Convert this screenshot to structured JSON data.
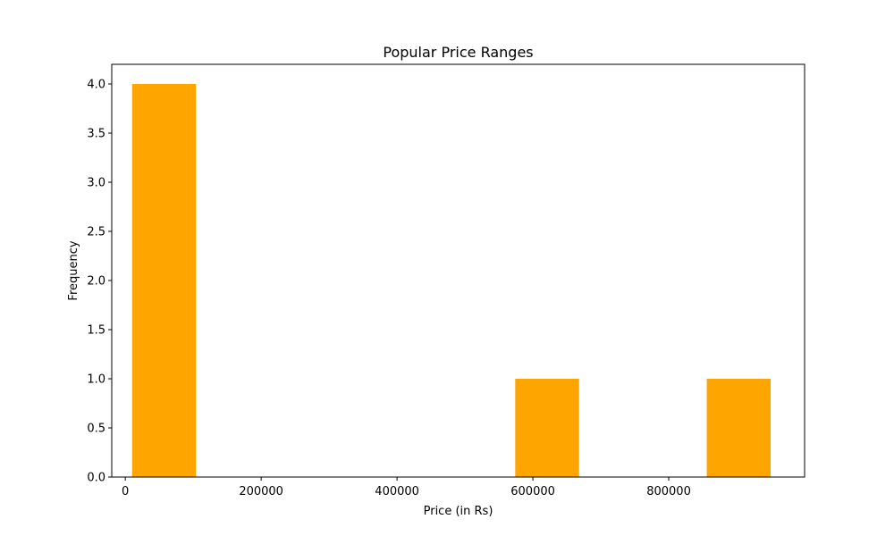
{
  "chart_data": {
    "type": "bar",
    "title": "Popular Price Ranges",
    "xlabel": "Price (in Rs)",
    "ylabel": "Frequency",
    "xlim": [
      -20000,
      1000000
    ],
    "ylim": [
      0,
      4.2
    ],
    "xticks": [
      0,
      200000,
      400000,
      600000,
      800000
    ],
    "xtick_labels": [
      "0",
      "200000",
      "400000",
      "600000",
      "800000"
    ],
    "yticks": [
      0,
      0.5,
      1.0,
      1.5,
      2.0,
      2.5,
      3.0,
      3.5,
      4.0
    ],
    "ytick_labels": [
      "0.0",
      "0.5",
      "1.0",
      "1.5",
      "2.0",
      "2.5",
      "3.0",
      "3.5",
      "4.0"
    ],
    "bins": [
      {
        "start": 10000,
        "end": 104000,
        "count": 4
      },
      {
        "start": 574000,
        "end": 668000,
        "count": 1
      },
      {
        "start": 856000,
        "end": 950000,
        "count": 1
      }
    ],
    "bar_color": "#ffa500",
    "grid": false,
    "legend": false
  }
}
